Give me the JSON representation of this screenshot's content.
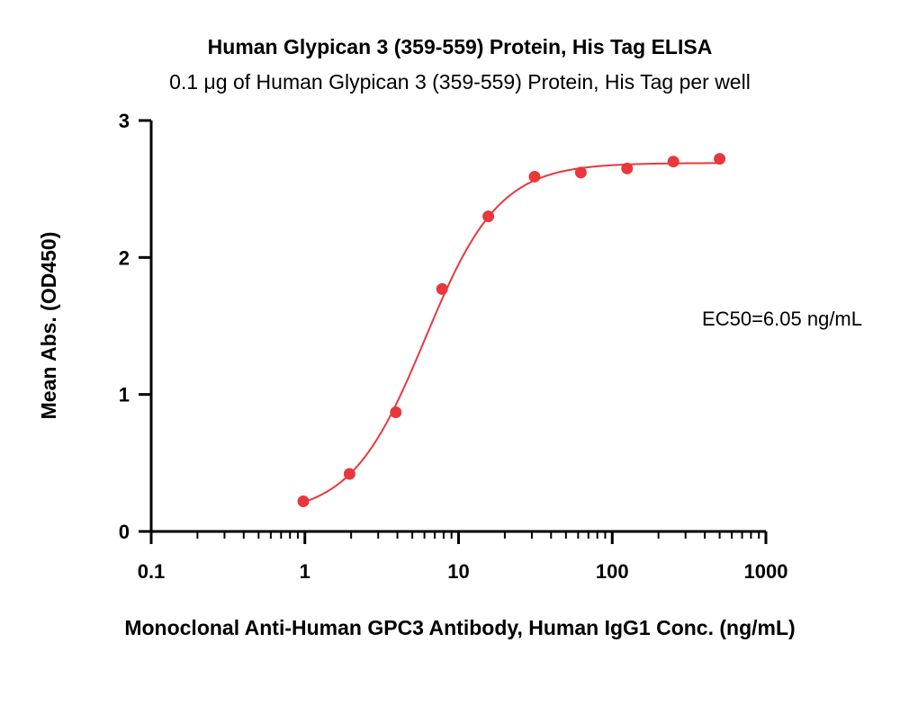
{
  "chart_data": {
    "type": "scatter",
    "title": "Human Glypican 3 (359-559) Protein, His Tag ELISA",
    "subtitle": "0.1 μg of Human Glypican 3 (359-559) Protein, His Tag per well",
    "xlabel": "Monoclonal Anti-Human GPC3 Antibody, Human IgG1 Conc. (ng/mL)",
    "ylabel": "Mean Abs. (OD450)",
    "x_scale": "log",
    "xlim": [
      0.1,
      1000
    ],
    "ylim": [
      0,
      3
    ],
    "x_ticks": [
      0.1,
      1,
      10,
      100,
      1000
    ],
    "x_tick_labels": [
      "0.1",
      "1",
      "10",
      "100",
      "1000"
    ],
    "y_ticks": [
      0,
      1,
      2,
      3
    ],
    "y_tick_labels": [
      "0",
      "1",
      "2",
      "3"
    ],
    "grid": false,
    "annotation": "EC50=6.05 ng/mL",
    "color": "#e8383d",
    "series": [
      {
        "x": [
          0.977,
          1.953,
          3.906,
          7.813,
          15.625,
          31.25,
          62.5,
          125,
          250,
          500
        ],
        "y": [
          0.22,
          0.42,
          0.87,
          1.77,
          2.3,
          2.59,
          2.62,
          2.65,
          2.7,
          2.72
        ]
      }
    ],
    "fit": {
      "model": "4PL",
      "bottom": 0.12,
      "top": 2.69,
      "ec50": 6.05,
      "hill": 1.8,
      "x_range": [
        0.977,
        500
      ]
    }
  }
}
